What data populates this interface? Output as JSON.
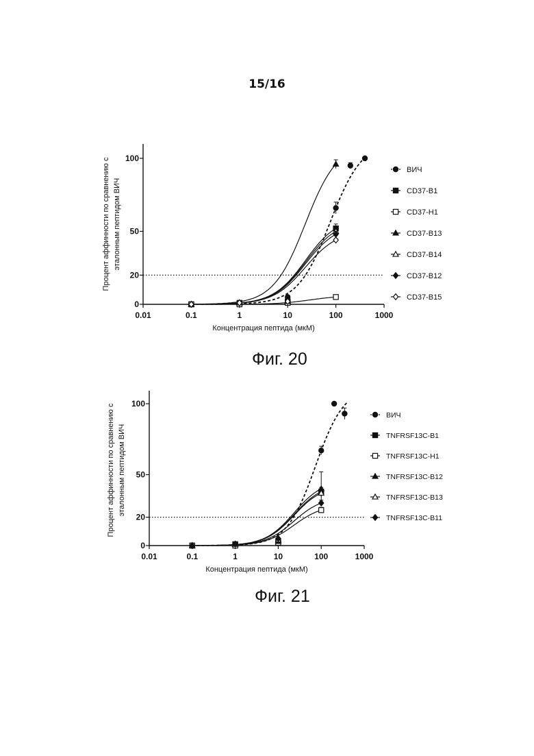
{
  "page": {
    "number": "15/16"
  },
  "figures": [
    {
      "caption": "Фиг. 20"
    },
    {
      "caption": "Фиг. 21"
    }
  ],
  "chart_data": [
    {
      "type": "scatter",
      "title": "",
      "xlabel": "Концентрация пептида (мкМ)",
      "ylabel_lines": [
        "Процент аффинности по сравнению с",
        "эталонным пептидом ВИЧ"
      ],
      "x_scale": "log",
      "xlim": [
        0.01,
        1000
      ],
      "ylim": [
        0,
        100
      ],
      "x_tick_labels": [
        "0.01",
        "0.1",
        "1",
        "10",
        "100",
        "1000"
      ],
      "y_tick_labels": [
        "0",
        "20",
        "50",
        "100"
      ],
      "reference_line": {
        "y": 20,
        "style": "dotted"
      },
      "legend_position": "right",
      "series": [
        {
          "name": "ВИЧ",
          "marker": "circle-filled",
          "line": "dashed",
          "x": [
            0.1,
            1,
            10,
            100,
            200,
            400
          ],
          "y": [
            0,
            1,
            5,
            66,
            95,
            100
          ],
          "err": [
            0,
            0,
            0,
            4,
            2,
            0
          ]
        },
        {
          "name": "CD37-B1",
          "marker": "square-filled",
          "line": "solid",
          "x": [
            0.1,
            1,
            10,
            100
          ],
          "y": [
            0,
            1,
            2,
            52
          ],
          "err": [
            0,
            0,
            0,
            3
          ]
        },
        {
          "name": "CD37-H1",
          "marker": "square-open",
          "line": "solid",
          "x": [
            0.1,
            1,
            10,
            100
          ],
          "y": [
            0,
            0,
            1,
            5
          ],
          "err": [
            0,
            0,
            0,
            0
          ]
        },
        {
          "name": "CD37-B13",
          "marker": "triangle-filled",
          "line": "solid",
          "x": [
            0.1,
            1,
            10,
            100
          ],
          "y": [
            0,
            1,
            2,
            96
          ],
          "err": [
            0,
            0,
            0,
            3
          ]
        },
        {
          "name": "CD37-B14",
          "marker": "triangle-open",
          "line": "solid",
          "x": [
            0.1,
            1,
            10,
            100
          ],
          "y": [
            0,
            1,
            2,
            50
          ],
          "err": [
            0,
            0,
            0,
            3
          ]
        },
        {
          "name": "CD37-B12",
          "marker": "diamond-filled",
          "line": "solid",
          "x": [
            0.1,
            1,
            10,
            100
          ],
          "y": [
            0,
            1,
            3,
            48
          ],
          "err": [
            0,
            0,
            0,
            2
          ]
        },
        {
          "name": "CD37-B15",
          "marker": "diamond-open",
          "line": "solid",
          "x": [
            0.1,
            1,
            10,
            100
          ],
          "y": [
            0,
            1,
            2,
            44
          ],
          "err": [
            0,
            0,
            0,
            1
          ]
        }
      ]
    },
    {
      "type": "scatter",
      "title": "",
      "xlabel": "Концентрация пептида (мкМ)",
      "ylabel_lines": [
        "Процент аффинности по сравнению с",
        "эталонным пептидом ВИЧ"
      ],
      "x_scale": "log",
      "xlim": [
        0.01,
        1000
      ],
      "ylim": [
        0,
        100
      ],
      "x_tick_labels": [
        "0.01",
        "0.1",
        "1",
        "10",
        "100",
        "1000"
      ],
      "y_tick_labels": [
        "0",
        "20",
        "50",
        "100"
      ],
      "reference_line": {
        "y": 20,
        "style": "dotted"
      },
      "legend_position": "right",
      "series": [
        {
          "name": "ВИЧ",
          "marker": "circle-filled",
          "line": "dashed",
          "x": [
            0.1,
            1,
            10,
            100,
            200,
            350
          ],
          "y": [
            0,
            0,
            2,
            67,
            100,
            93
          ],
          "err": [
            0,
            0,
            0,
            3,
            0,
            4
          ]
        },
        {
          "name": "TNFRSF13C-B1",
          "marker": "square-filled",
          "line": "solid",
          "x": [
            0.1,
            1,
            10,
            100
          ],
          "y": [
            0,
            1,
            3,
            38
          ],
          "err": [
            0,
            0,
            0,
            3
          ]
        },
        {
          "name": "TNFRSF13C-H1",
          "marker": "square-open",
          "line": "solid",
          "x": [
            0.1,
            1,
            10,
            100
          ],
          "y": [
            0,
            0,
            2,
            25
          ],
          "err": [
            0,
            0,
            0,
            2
          ]
        },
        {
          "name": "TNFRSF13C-B12",
          "marker": "triangle-filled",
          "line": "solid",
          "x": [
            0.1,
            1,
            10,
            100
          ],
          "y": [
            0,
            1,
            3,
            40
          ],
          "err": [
            0,
            0,
            0,
            12
          ]
        },
        {
          "name": "TNFRSF13C-B13",
          "marker": "triangle-open",
          "line": "solid",
          "x": [
            0.1,
            1,
            10,
            100
          ],
          "y": [
            0,
            1,
            4,
            37
          ],
          "err": [
            0,
            0,
            0,
            3
          ]
        },
        {
          "name": "TNFRSF13C-B11",
          "marker": "diamond-filled",
          "line": "solid",
          "x": [
            0.1,
            1,
            10,
            100
          ],
          "y": [
            0,
            1,
            5,
            30
          ],
          "err": [
            0,
            0,
            0,
            2
          ]
        }
      ]
    }
  ]
}
